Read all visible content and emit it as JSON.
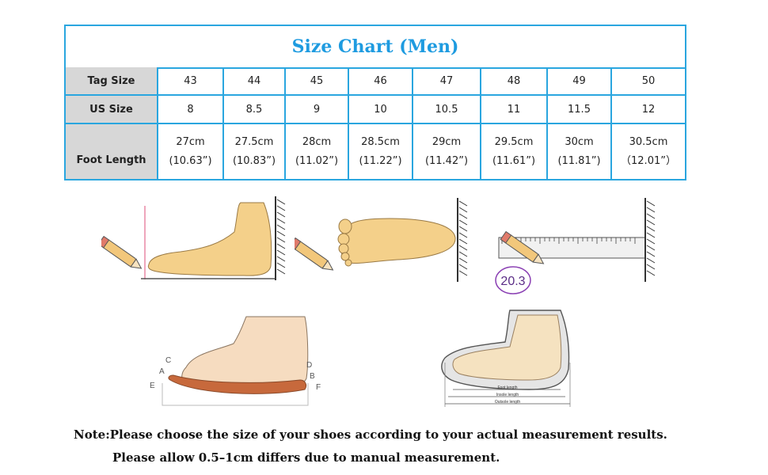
{
  "chart": {
    "title": "Size Chart (Men)",
    "row_headers": [
      "Tag Size",
      "US Size",
      "Foot Length"
    ],
    "tag_sizes": [
      "43",
      "44",
      "45",
      "46",
      "47",
      "48",
      "49",
      "50"
    ],
    "us_sizes": [
      "8",
      "8.5",
      "9",
      "10",
      "10.5",
      "11",
      "11.5",
      "12"
    ],
    "foot_length_cm": [
      "27cm",
      "27.5cm",
      "28cm",
      "28.5cm",
      "29cm",
      "29.5cm",
      "30cm",
      "30.5cm"
    ],
    "foot_length_in": [
      "(10.63”)",
      "(10.83”)",
      "(11.02”)",
      "(11.22”)",
      "(11.42”)",
      "(11.61”)",
      "(11.81”)",
      "（12.01”）"
    ]
  },
  "illustrations": {
    "ruler_reading": "20.3",
    "points": [
      "A",
      "B",
      "C",
      "D",
      "E",
      "F"
    ],
    "shoe_lines": [
      "Foot length",
      "Insole length",
      "Outsole length"
    ]
  },
  "note": {
    "line1": "Note:Please choose the size of your shoes according to your actual measurement results.",
    "line2": "Please allow 0.5–1cm differs due to manual measurement."
  }
}
